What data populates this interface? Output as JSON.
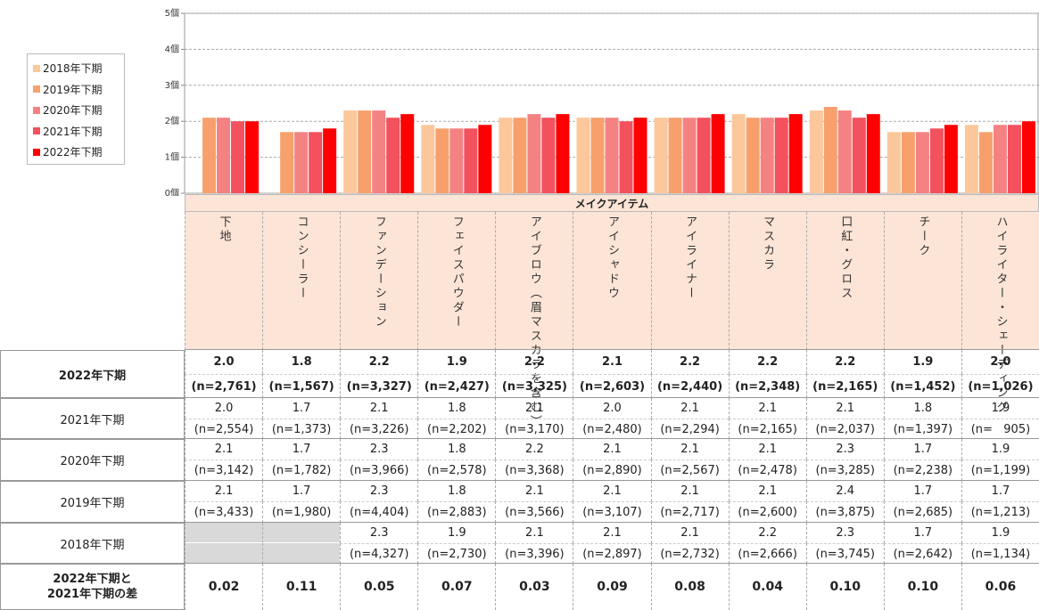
{
  "chart_data": {
    "type": "bar",
    "xlabel": "メイクアイテム",
    "categories": [
      "下地",
      "コンシーラー",
      "ファンデーション",
      "フェイスパウダー",
      "アイブロウ（眉マスカラを含む）",
      "アイシャドウ",
      "アイライナー",
      "マスカラ",
      "口紅・グロス",
      "チーク",
      "ハイライター・シェーディング"
    ],
    "ylim": [
      0,
      5
    ],
    "yticks": [
      {
        "value": 0,
        "label": "0個"
      },
      {
        "value": 1,
        "label": "1個"
      },
      {
        "value": 2,
        "label": "2個"
      },
      {
        "value": 3,
        "label": "3個"
      },
      {
        "value": 4,
        "label": "4個"
      },
      {
        "value": 5,
        "label": "5個"
      }
    ],
    "grid": true,
    "series": [
      {
        "name": "2018年下期",
        "color": "#fbc79b",
        "values": [
          null,
          null,
          2.3,
          1.9,
          2.1,
          2.1,
          2.1,
          2.2,
          2.3,
          1.7,
          1.9
        ],
        "value_labels": [
          null,
          null,
          "2.3",
          "1.9",
          "2.1",
          "2.1",
          "2.1",
          "2.2",
          "2.3",
          "1.7",
          "1.9"
        ],
        "n": [
          null,
          null,
          "(n=4,327)",
          "(n=2,730)",
          "(n=3,396)",
          "(n=2,897)",
          "(n=2,732)",
          "(n=2,666)",
          "(n=3,745)",
          "(n=2,642)",
          "(n=1,134)"
        ]
      },
      {
        "name": "2019年下期",
        "color": "#f7a06c",
        "values": [
          2.1,
          1.7,
          2.3,
          1.8,
          2.1,
          2.1,
          2.1,
          2.1,
          2.4,
          1.7,
          1.7
        ],
        "value_labels": [
          "2.1",
          "1.7",
          "2.3",
          "1.8",
          "2.1",
          "2.1",
          "2.1",
          "2.1",
          "2.4",
          "1.7",
          "1.7"
        ],
        "n": [
          "(n=3,433)",
          "(n=1,980)",
          "(n=4,404)",
          "(n=2,883)",
          "(n=3,566)",
          "(n=3,107)",
          "(n=2,717)",
          "(n=2,600)",
          "(n=3,875)",
          "(n=2,685)",
          "(n=1,213)"
        ]
      },
      {
        "name": "2020年下期",
        "color": "#f58283",
        "values": [
          2.1,
          1.7,
          2.3,
          1.8,
          2.2,
          2.1,
          2.1,
          2.1,
          2.3,
          1.7,
          1.9
        ],
        "value_labels": [
          "2.1",
          "1.7",
          "2.3",
          "1.8",
          "2.2",
          "2.1",
          "2.1",
          "2.1",
          "2.3",
          "1.7",
          "1.9"
        ],
        "n": [
          "(n=3,142)",
          "(n=1,782)",
          "(n=3,966)",
          "(n=2,578)",
          "(n=3,368)",
          "(n=2,890)",
          "(n=2,567)",
          "(n=2,478)",
          "(n=3,285)",
          "(n=2,238)",
          "(n=1,199)"
        ]
      },
      {
        "name": "2021年下期",
        "color": "#f2515d",
        "values": [
          2.0,
          1.7,
          2.1,
          1.8,
          2.1,
          2.0,
          2.1,
          2.1,
          2.1,
          1.8,
          1.9
        ],
        "value_labels": [
          "2.0",
          "1.7",
          "2.1",
          "1.8",
          "2.1",
          "2.0",
          "2.1",
          "2.1",
          "2.1",
          "1.8",
          "1.9"
        ],
        "n": [
          "(n=2,554)",
          "(n=1,373)",
          "(n=3,226)",
          "(n=2,202)",
          "(n=3,170)",
          "(n=2,480)",
          "(n=2,294)",
          "(n=2,165)",
          "(n=2,037)",
          "(n=1,397)",
          "(n=   905)"
        ]
      },
      {
        "name": "2022年下期",
        "color": "#ff0000",
        "values": [
          2.0,
          1.8,
          2.2,
          1.9,
          2.2,
          2.1,
          2.2,
          2.2,
          2.2,
          1.9,
          2.0
        ],
        "value_labels": [
          "2.0",
          "1.8",
          "2.2",
          "1.9",
          "2.2",
          "2.1",
          "2.2",
          "2.2",
          "2.2",
          "1.9",
          "2.0"
        ],
        "n": [
          "(n=2,761)",
          "(n=1,567)",
          "(n=3,327)",
          "(n=2,427)",
          "(n=3,325)",
          "(n=2,603)",
          "(n=2,440)",
          "(n=2,348)",
          "(n=2,165)",
          "(n=1,452)",
          "(n=1,026)"
        ]
      }
    ],
    "diff": {
      "label": "2022年下期と\n2021年下期の差",
      "values": [
        0.02,
        0.11,
        0.05,
        0.07,
        0.03,
        0.09,
        0.08,
        0.04,
        0.1,
        0.1,
        0.06
      ],
      "value_labels": [
        "0.02",
        "0.11",
        "0.05",
        "0.07",
        "0.03",
        "0.09",
        "0.08",
        "0.04",
        "0.10",
        "0.10",
        "0.06"
      ]
    }
  }
}
